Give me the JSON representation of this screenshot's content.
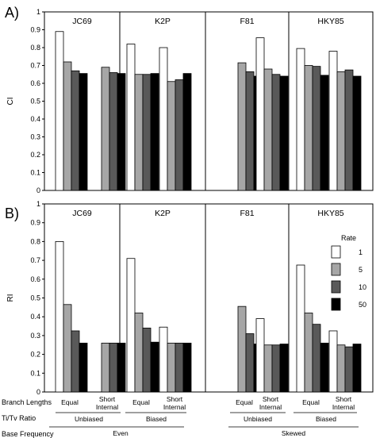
{
  "chart_data": [
    {
      "type": "bar",
      "panel_label": "A)",
      "ylabel": "CI",
      "ylim": [
        0,
        1
      ],
      "yticks": [
        "0",
        "0.1",
        "0.2",
        "0.3",
        "0.4",
        "0.5",
        "0.6",
        "0.7",
        "0.8",
        "0.9",
        "1"
      ],
      "grid": false,
      "models": [
        "JC69",
        "K2P",
        "F81",
        "HKY85"
      ],
      "groups": [
        {
          "model": "JC69",
          "branch_lengths": "Equal",
          "rates": {
            "1": 0.89,
            "5": 0.72,
            "10": 0.67,
            "50": 0.655
          }
        },
        {
          "model": "JC69",
          "branch_lengths": "Short Internal",
          "rates": {
            "1": null,
            "5": 0.69,
            "10": 0.66,
            "50": 0.655
          }
        },
        {
          "model": "K2P",
          "branch_lengths": "Equal",
          "rates": {
            "1": 0.82,
            "5": 0.65,
            "10": 0.65,
            "50": 0.655
          }
        },
        {
          "model": "K2P",
          "branch_lengths": "Short Internal",
          "rates": {
            "1": 0.8,
            "5": 0.61,
            "10": 0.62,
            "50": 0.655
          }
        },
        {
          "model": "F81",
          "branch_lengths": "Equal",
          "rates": {
            "1": null,
            "5": 0.715,
            "10": 0.665,
            "50": 0.64
          }
        },
        {
          "model": "F81",
          "branch_lengths": "Short Internal",
          "rates": {
            "1": 0.855,
            "5": 0.68,
            "10": 0.65,
            "50": 0.64
          }
        },
        {
          "model": "HKY85",
          "branch_lengths": "Equal",
          "rates": {
            "1": 0.795,
            "5": 0.7,
            "10": 0.695,
            "50": 0.645
          }
        },
        {
          "model": "HKY85",
          "branch_lengths": "Short Internal",
          "rates": {
            "1": 0.78,
            "5": 0.665,
            "10": 0.675,
            "50": 0.64
          }
        }
      ]
    },
    {
      "type": "bar",
      "panel_label": "B)",
      "ylabel": "RI",
      "ylim": [
        0,
        1
      ],
      "yticks": [
        "0",
        "0.1",
        "0.2",
        "0.3",
        "0.4",
        "0.5",
        "0.6",
        "0.7",
        "0.8",
        "0.9",
        "1"
      ],
      "grid": false,
      "legend": {
        "title": "Rate",
        "placement": "right",
        "entries": [
          "1",
          "5",
          "10",
          "50"
        ]
      },
      "models": [
        "JC69",
        "K2P",
        "F81",
        "HKY85"
      ],
      "groups": [
        {
          "model": "JC69",
          "branch_lengths": "Equal",
          "rates": {
            "1": 0.8,
            "5": 0.465,
            "10": 0.325,
            "50": 0.26
          }
        },
        {
          "model": "JC69",
          "branch_lengths": "Short Internal",
          "rates": {
            "1": null,
            "5": 0.26,
            "10": 0.26,
            "50": 0.26
          }
        },
        {
          "model": "K2P",
          "branch_lengths": "Equal",
          "rates": {
            "1": 0.71,
            "5": 0.42,
            "10": 0.34,
            "50": 0.265
          }
        },
        {
          "model": "K2P",
          "branch_lengths": "Short Internal",
          "rates": {
            "1": 0.345,
            "5": 0.26,
            "10": 0.26,
            "50": 0.26
          }
        },
        {
          "model": "F81",
          "branch_lengths": "Equal",
          "rates": {
            "1": null,
            "5": 0.455,
            "10": 0.31,
            "50": 0.255
          }
        },
        {
          "model": "F81",
          "branch_lengths": "Short Internal",
          "rates": {
            "1": 0.39,
            "5": 0.25,
            "10": 0.25,
            "50": 0.255
          }
        },
        {
          "model": "HKY85",
          "branch_lengths": "Equal",
          "rates": {
            "1": 0.675,
            "5": 0.42,
            "10": 0.36,
            "50": 0.26
          }
        },
        {
          "model": "HKY85",
          "branch_lengths": "Short Internal",
          "rates": {
            "1": 0.325,
            "5": 0.25,
            "10": 0.24,
            "50": 0.255
          }
        }
      ]
    }
  ],
  "series_colors": {
    "1": "#ffffff",
    "5": "#a6a6a6",
    "10": "#595959",
    "50": "#000000"
  },
  "bottom_table": {
    "branch_lengths_label": "Branch Lengths",
    "titv_label": "Ti/Tv Ratio",
    "base_frequency_label": "Base Frequency",
    "branch_lengths": [
      "Equal",
      "Short Internal",
      "Equal",
      "Short Internal",
      "Equal",
      "Short Internal",
      "Equal",
      "Short Internal"
    ],
    "titv": [
      "Unbiased",
      "Biased",
      "Unbiased",
      "Biased"
    ],
    "base_frequency": [
      "Even",
      "Skewed"
    ]
  }
}
